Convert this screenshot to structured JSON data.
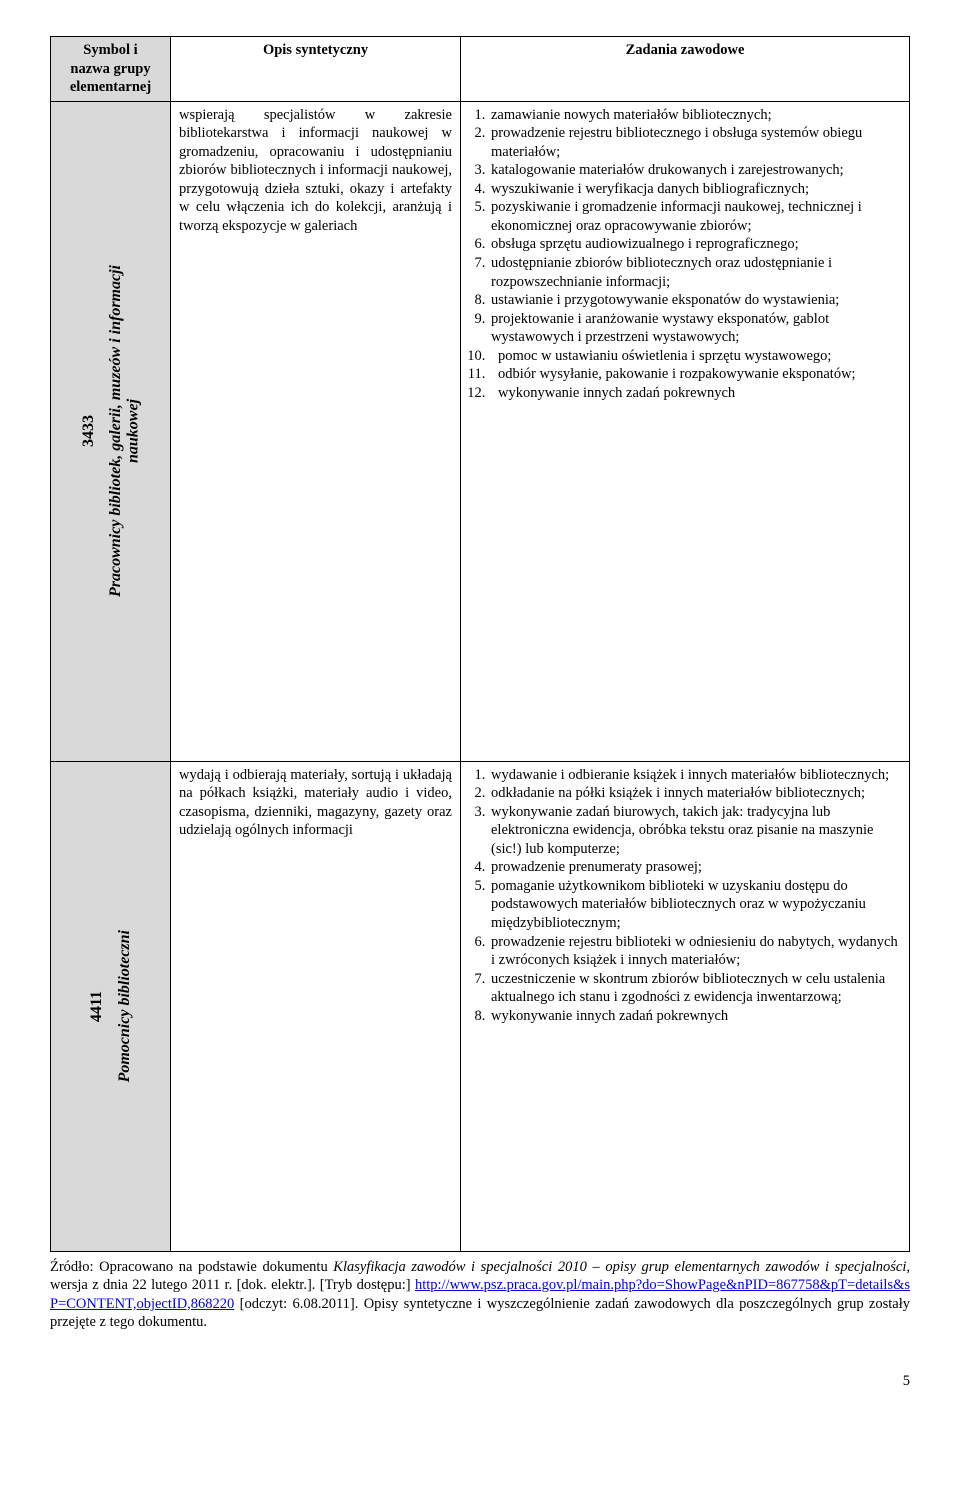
{
  "header": {
    "col1_l1": "Symbol i",
    "col1_l2": "nazwa grupy",
    "col1_l3": "elementarnej",
    "col2": "Opis syntetyczny",
    "col3": "Zadania zawodowe"
  },
  "rows": [
    {
      "code": "3433",
      "title": "Pracownicy bibliotek, galerii, muzeów i informacji naukowej",
      "desc": "wspierają specjalistów w zakresie bibliotekarstwa i informacji naukowej w gromadzeniu, opracowaniu i udostępnianiu zbiorów bibliotecznych i informacji naukowej, przygotowują dzieła sztuki, okazy i artefakty w celu włączenia ich do kolekcji, aranżują i tworzą ekspozycje w galeriach",
      "tasks": [
        "zamawianie nowych materiałów bibliotecznych;",
        "prowadzenie rejestru bibliotecznego i obsługa systemów obiegu materiałów;",
        "katalogowanie materiałów drukowanych i zarejestrowanych;",
        "wyszukiwanie i weryfikacja danych bibliograficznych;",
        "pozyskiwanie i gromadzenie informacji naukowej, technicznej i ekonomicznej oraz opracowywanie zbiorów;",
        "obsługa sprzętu audiowizualnego i reprograficznego;",
        "udostępnianie zbiorów bibliotecznych oraz udostępnianie i rozpowszechnianie informacji;",
        "ustawianie i przygotowywanie eksponatów do wystawienia;",
        "projektowanie i aranżowanie wystawy eksponatów, gablot wystawowych i przestrzeni wystawowych;",
        "pomoc w ustawianiu oświetlenia i sprzętu wystawowego;",
        "odbiór wysyłanie, pakowanie i rozpakowywanie eksponatów;",
        "wykonywanie innych zadań pokrewnych"
      ]
    },
    {
      "code": "4411",
      "title": "Pomocnicy biblioteczni",
      "desc": "wydają i odbierają materiały, sortują i układają na półkach książki, materiały audio i video, czasopisma, dzienniki, magazyny, gazety oraz udzielają ogólnych informacji",
      "tasks": [
        "wydawanie i odbieranie książek i innych materiałów bibliotecznych;",
        "odkładanie na półki książek i innych materiałów bibliotecznych;",
        "wykonywanie zadań biurowych, takich jak: tradycyjna lub elektroniczna ewidencja, obróbka tekstu oraz pisanie na maszynie (sic!) lub komputerze;",
        "prowadzenie prenumeraty prasowej;",
        "pomaganie użytkownikom biblioteki w uzyskaniu dostępu do podstawowych materiałów bibliotecznych oraz w wypożyczaniu międzybibliotecznym;",
        "prowadzenie rejestru biblioteki w odniesieniu do nabytych, wydanych i zwróconych książek i innych  materiałów;",
        "uczestniczenie w skontrum zbiorów bibliotecznych w celu ustalenia aktualnego ich stanu i zgodności z ewidencja inwentarzową;",
        "wykonywanie innych zadań pokrewnych"
      ]
    }
  ],
  "source": {
    "prefix": "Źródło: Opracowano na podstawie dokumentu ",
    "italic": "Klasyfikacja zawodów i specjalności 2010 – opisy grup elementarnych zawodów i specjalności",
    "mid": ", wersja z dnia 22 lutego 2011 r. [dok. elektr.]. [Tryb dostępu:] ",
    "link": "http://www.psz.praca.gov.pl/main.php?do=ShowPage&nPID=867758&pT=details&sP=CONTENT,objectID,868220",
    "after": " [odczyt: 6.08.2011]. Opisy syntetyczne i wyszczególnienie zadań zawodowych dla poszczególnych grup zostały przejęte z tego dokumentu."
  },
  "pagenum": "5",
  "heights": {
    "row1": "660px",
    "row2": "490px"
  }
}
